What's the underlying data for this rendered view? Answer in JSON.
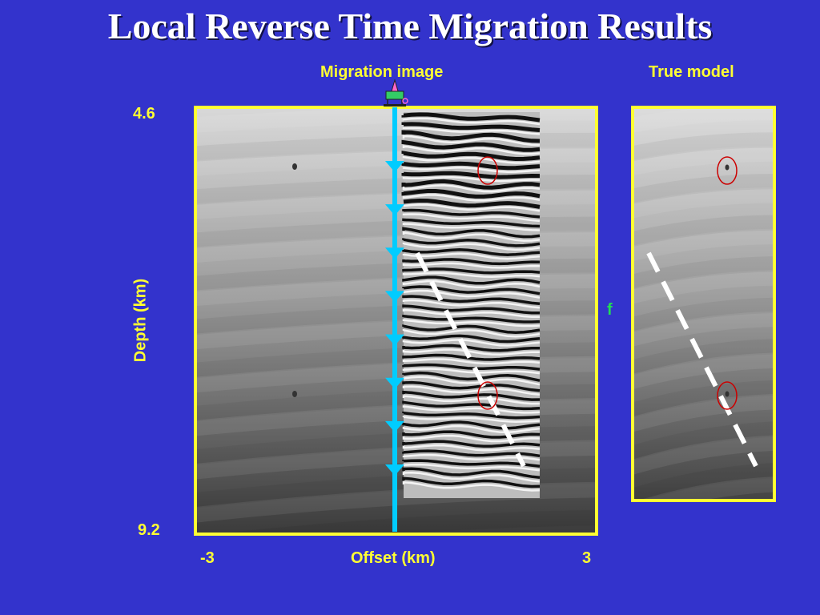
{
  "slide": {
    "title": "Local Reverse Time Migration Results"
  },
  "panels": {
    "migration_label": "Migration image",
    "true_model_label": "True model"
  },
  "axes": {
    "depth_top": "4.6",
    "depth_bottom": "9.2",
    "depth_label": "Depth (km)",
    "offset_left": "-3",
    "offset_right": "3",
    "offset_label": "Offset (km)"
  },
  "annotations": {
    "fault_letter": "f"
  },
  "colors": {
    "background": "#3333cc",
    "frame": "#ffff33",
    "well": "#00ccff",
    "circle": "#cc0000",
    "fault_line": "#ffffff",
    "fault_text": "#22dd55"
  },
  "icons": {
    "rig": "drilling-rig-icon",
    "receiver": "triangle-down-receiver-icon"
  },
  "receivers": {
    "count": 8
  }
}
